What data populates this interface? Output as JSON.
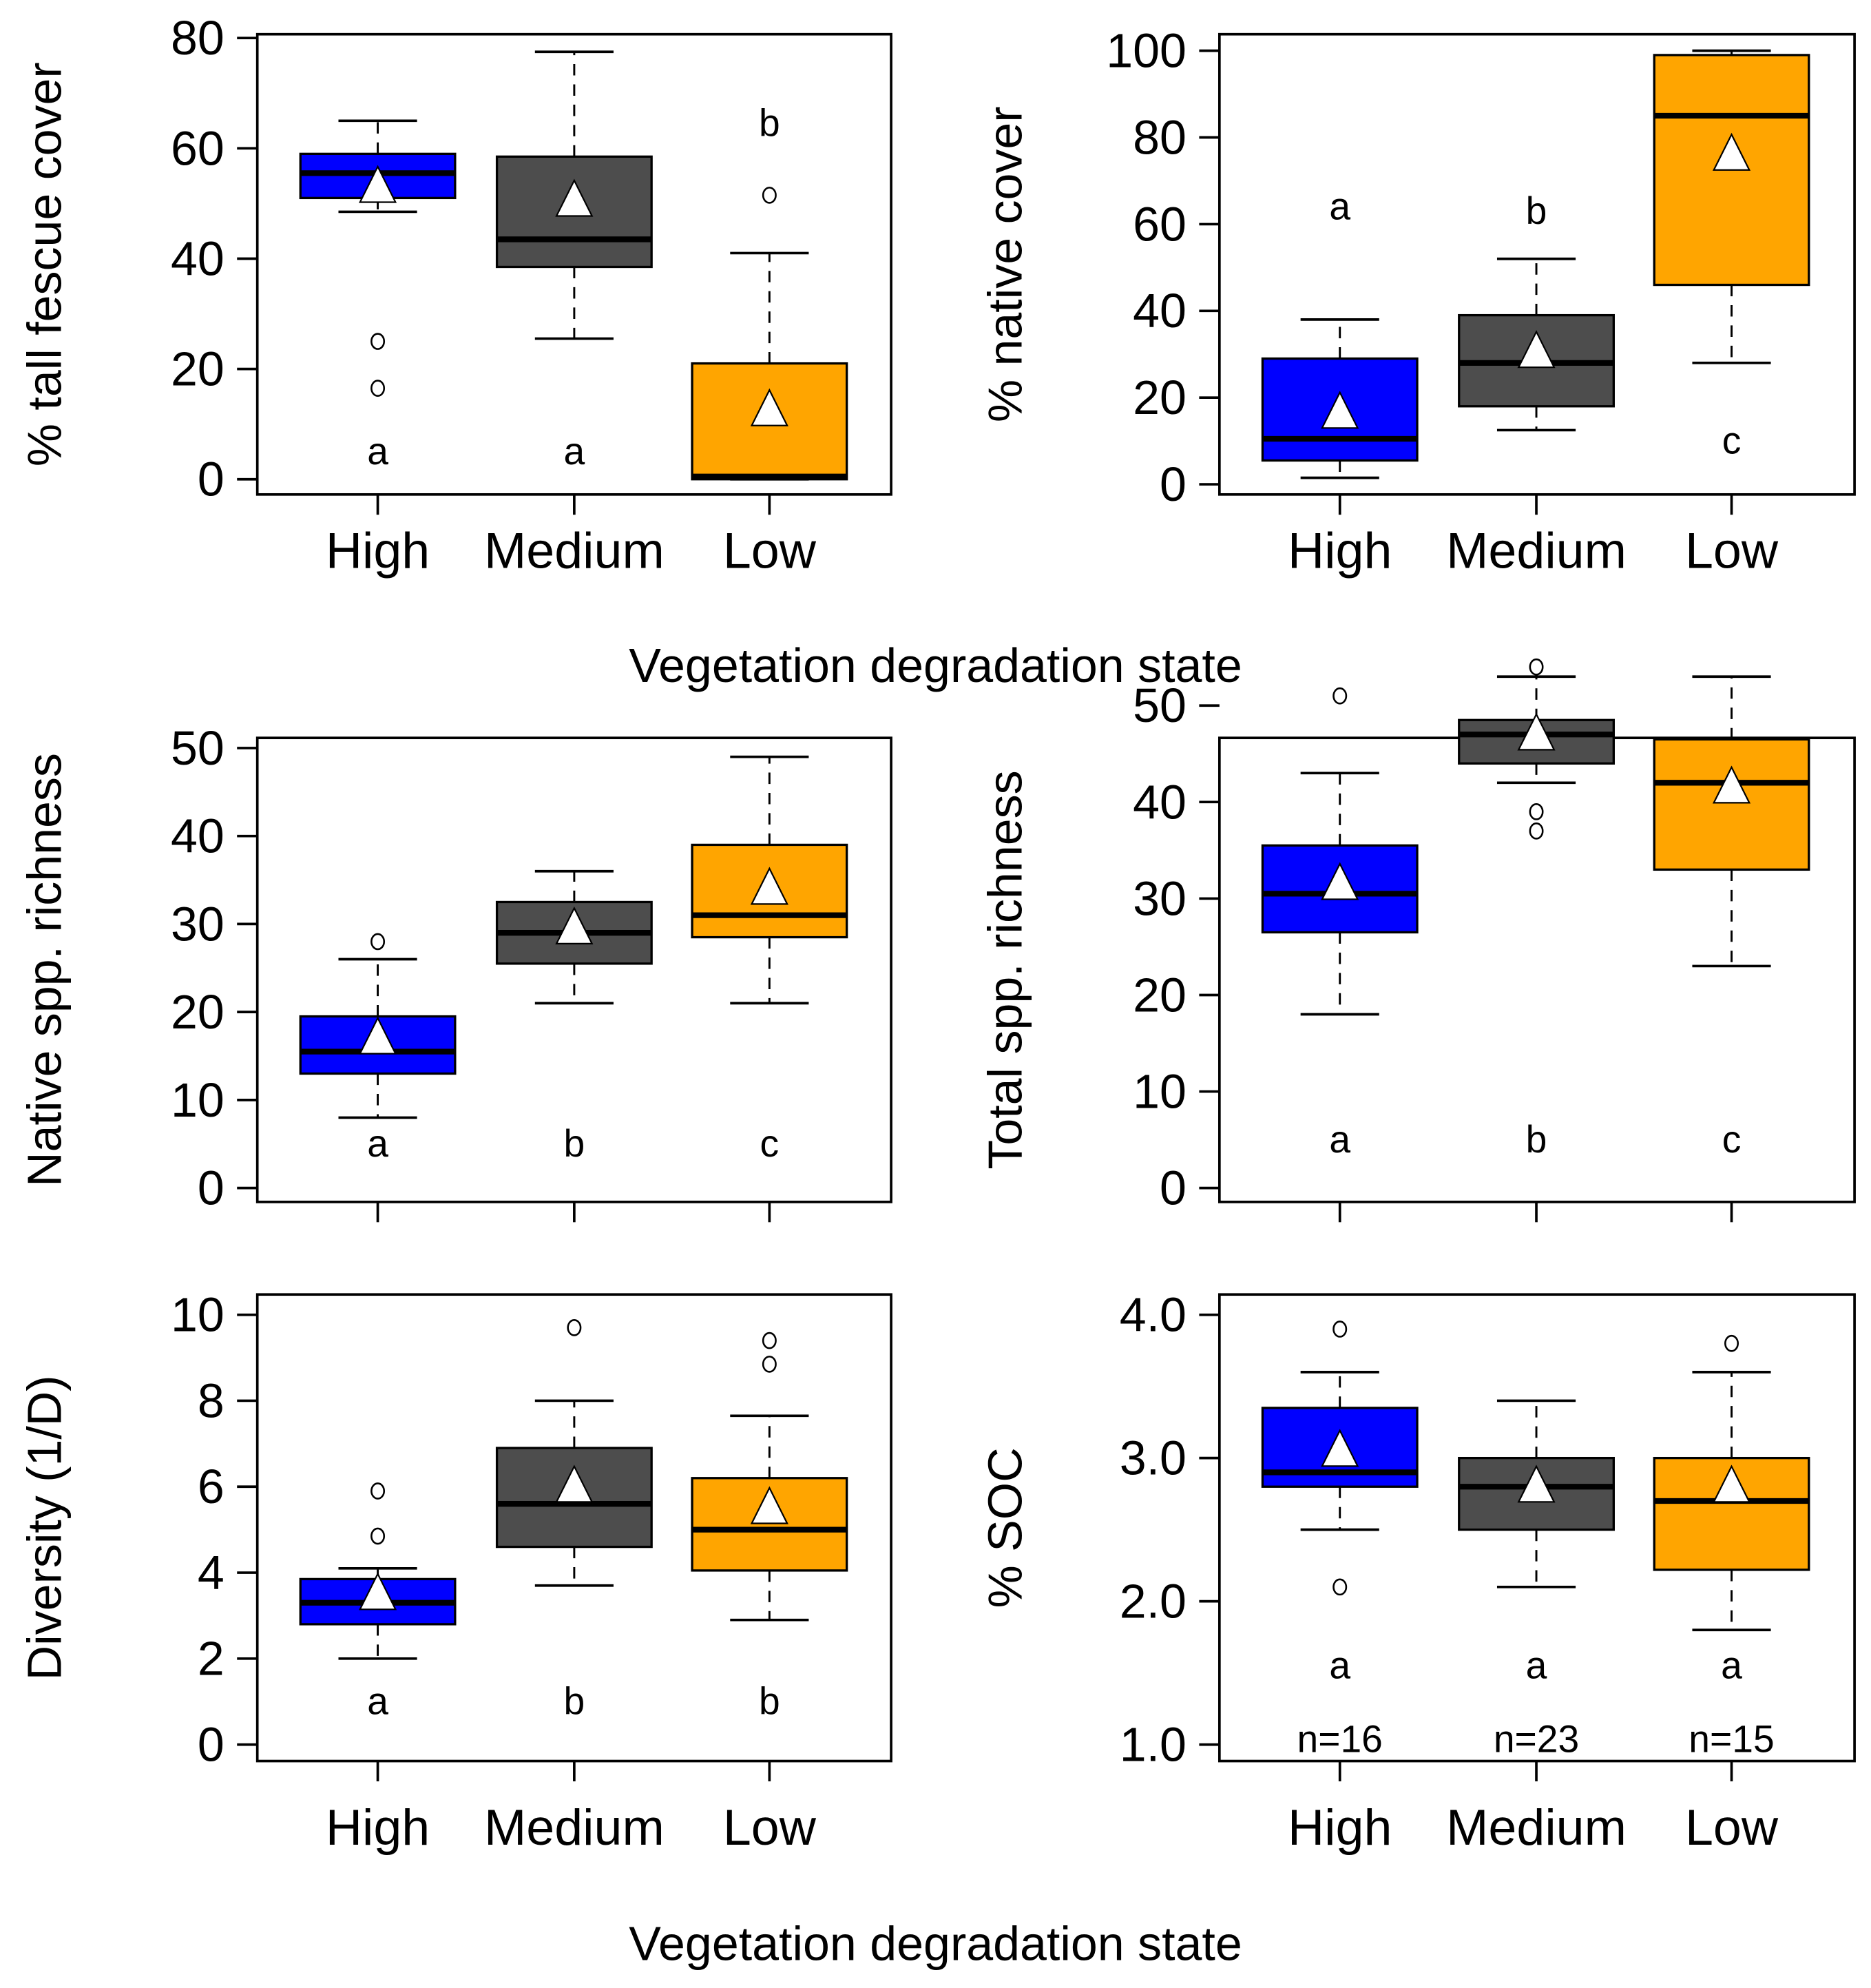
{
  "figure": {
    "x_title_top": "Vegetation degradation state",
    "x_title_bottom": "Vegetation degradation state"
  },
  "colors": {
    "High": "#0000ff",
    "Medium": "#4d4d4d",
    "Low": "#ffa500"
  },
  "chart_data": [
    {
      "type": "box",
      "ylabel": "% tall fescue cover",
      "ylim": [
        0,
        80
      ],
      "yticks": [
        0,
        20,
        40,
        60,
        80
      ],
      "ytick_labels": [
        "0",
        "20",
        "40",
        "60",
        "80"
      ],
      "categories": [
        "High",
        "Medium",
        "Low"
      ],
      "show_category_labels": true,
      "boxes": [
        {
          "category": "High",
          "whisker_low": 48.5,
          "q1": 51,
          "median": 55.5,
          "q3": 59,
          "whisker_high": 65,
          "mean": 53,
          "outliers": [
            25,
            16.5
          ],
          "letter": "a",
          "letter_y": 5
        },
        {
          "category": "Medium",
          "whisker_low": 25.5,
          "q1": 38.5,
          "median": 43.5,
          "q3": 58.5,
          "whisker_high": 77.5,
          "mean": 50.5,
          "outliers": [],
          "letter": "a",
          "letter_y": 5
        },
        {
          "category": "Low",
          "whisker_low": 0,
          "q1": 0,
          "median": 0.5,
          "q3": 21,
          "whisker_high": 41,
          "mean": 12.5,
          "outliers": [
            51.5
          ],
          "letter": "b",
          "letter_y": 64.5
        }
      ]
    },
    {
      "type": "box",
      "ylabel": "% native cover",
      "ylim": [
        0,
        100
      ],
      "yticks": [
        0,
        20,
        40,
        60,
        80,
        100
      ],
      "ytick_labels": [
        "0",
        "20",
        "40",
        "60",
        "80",
        "100"
      ],
      "categories": [
        "High",
        "Medium",
        "Low"
      ],
      "show_category_labels": true,
      "boxes": [
        {
          "category": "High",
          "whisker_low": 1.5,
          "q1": 5.5,
          "median": 10.5,
          "q3": 29,
          "whisker_high": 38,
          "mean": 16.5,
          "outliers": [],
          "letter": "a",
          "letter_y": 64
        },
        {
          "category": "Medium",
          "whisker_low": 12.5,
          "q1": 18,
          "median": 28,
          "q3": 39,
          "whisker_high": 52,
          "mean": 30.5,
          "outliers": [],
          "letter": "b",
          "letter_y": 63
        },
        {
          "category": "Low",
          "whisker_low": 28,
          "q1": 46,
          "median": 85,
          "q3": 99,
          "whisker_high": 100,
          "mean": 76,
          "outliers": [],
          "letter": "c",
          "letter_y": 10
        }
      ]
    },
    {
      "type": "box",
      "ylabel": "Native spp. richness",
      "ylim": [
        0,
        50
      ],
      "yticks": [
        0,
        10,
        20,
        30,
        40,
        50
      ],
      "ytick_labels": [
        "0",
        "10",
        "20",
        "30",
        "40",
        "50"
      ],
      "categories": [
        "High",
        "Medium",
        "Low"
      ],
      "show_category_labels": false,
      "boxes": [
        {
          "category": "High",
          "whisker_low": 8,
          "q1": 13,
          "median": 15.5,
          "q3": 19.5,
          "whisker_high": 26,
          "mean": 17,
          "outliers": [
            28
          ],
          "letter": "a",
          "letter_y": 5
        },
        {
          "category": "Medium",
          "whisker_low": 21,
          "q1": 25.5,
          "median": 29,
          "q3": 32.5,
          "whisker_high": 36,
          "mean": 29.5,
          "outliers": [],
          "letter": "b",
          "letter_y": 5
        },
        {
          "category": "Low",
          "whisker_low": 21,
          "q1": 28.5,
          "median": 31,
          "q3": 39,
          "whisker_high": 49,
          "mean": 34,
          "outliers": [],
          "letter": "c",
          "letter_y": 5
        }
      ]
    },
    {
      "type": "box",
      "ylabel": "Total spp. richness",
      "ylim": [
        0,
        55
      ],
      "yticks": [
        0,
        10,
        20,
        30,
        40,
        50
      ],
      "ytick_labels": [
        "0",
        "10",
        "20",
        "30",
        "40",
        "50"
      ],
      "categories": [
        "High",
        "Medium",
        "Low"
      ],
      "show_category_labels": false,
      "boxes": [
        {
          "category": "High",
          "whisker_low": 18,
          "q1": 26.5,
          "median": 30.5,
          "q3": 35.5,
          "whisker_high": 43,
          "mean": 31.5,
          "outliers": [
            51
          ],
          "letter": "a",
          "letter_y": 5
        },
        {
          "category": "Medium",
          "whisker_low": 42,
          "q1": 44,
          "median": 47,
          "q3": 48.5,
          "whisker_high": 53,
          "mean": 47,
          "outliers": [
            54,
            39,
            37
          ],
          "letter": "b",
          "letter_y": 5
        },
        {
          "category": "Low",
          "whisker_low": 23,
          "q1": 33,
          "median": 42,
          "q3": 46.5,
          "whisker_high": 53,
          "mean": 41.5,
          "outliers": [],
          "letter": "c",
          "letter_y": 5
        }
      ]
    },
    {
      "type": "box",
      "ylabel": "Diversity (1/D)",
      "ylim": [
        0,
        10
      ],
      "yticks": [
        0,
        2,
        4,
        6,
        8,
        10
      ],
      "ytick_labels": [
        "0",
        "2",
        "4",
        "6",
        "8",
        "10"
      ],
      "categories": [
        "High",
        "Medium",
        "Low"
      ],
      "show_category_labels": true,
      "boxes": [
        {
          "category": "High",
          "whisker_low": 2,
          "q1": 2.8,
          "median": 3.3,
          "q3": 3.85,
          "whisker_high": 4.1,
          "mean": 3.5,
          "outliers": [
            5.9,
            4.85
          ],
          "letter": "a",
          "letter_y": 1
        },
        {
          "category": "Medium",
          "whisker_low": 3.7,
          "q1": 4.6,
          "median": 5.6,
          "q3": 6.9,
          "whisker_high": 8,
          "mean": 6.0,
          "outliers": [
            9.7
          ],
          "letter": "b",
          "letter_y": 1
        },
        {
          "category": "Low",
          "whisker_low": 2.9,
          "q1": 4.05,
          "median": 5.0,
          "q3": 6.2,
          "whisker_high": 7.65,
          "mean": 5.5,
          "outliers": [
            9.4,
            8.85
          ],
          "letter": "b",
          "letter_y": 1
        }
      ]
    },
    {
      "type": "box",
      "ylabel": "% SOC",
      "ylim": [
        1,
        4
      ],
      "yticks": [
        1,
        2,
        3,
        4
      ],
      "ytick_labels": [
        "1.0",
        "2.0",
        "3.0",
        "4.0"
      ],
      "categories": [
        "High",
        "Medium",
        "Low"
      ],
      "show_category_labels": true,
      "boxes": [
        {
          "category": "High",
          "whisker_low": 2.5,
          "q1": 2.8,
          "median": 2.9,
          "q3": 3.35,
          "whisker_high": 3.6,
          "mean": 3.05,
          "outliers": [
            3.9,
            2.1
          ],
          "letter": "a",
          "letter_y": 1.55,
          "n_label": "n=16"
        },
        {
          "category": "Medium",
          "whisker_low": 2.1,
          "q1": 2.5,
          "median": 2.8,
          "q3": 3.0,
          "whisker_high": 3.4,
          "mean": 2.8,
          "outliers": [],
          "letter": "a",
          "letter_y": 1.55,
          "n_label": "n=23"
        },
        {
          "category": "Low",
          "whisker_low": 1.8,
          "q1": 2.22,
          "median": 2.7,
          "q3": 3.0,
          "whisker_high": 3.6,
          "mean": 2.8,
          "outliers": [
            3.8
          ],
          "letter": "a",
          "letter_y": 1.55,
          "n_label": "n=15"
        }
      ]
    }
  ]
}
